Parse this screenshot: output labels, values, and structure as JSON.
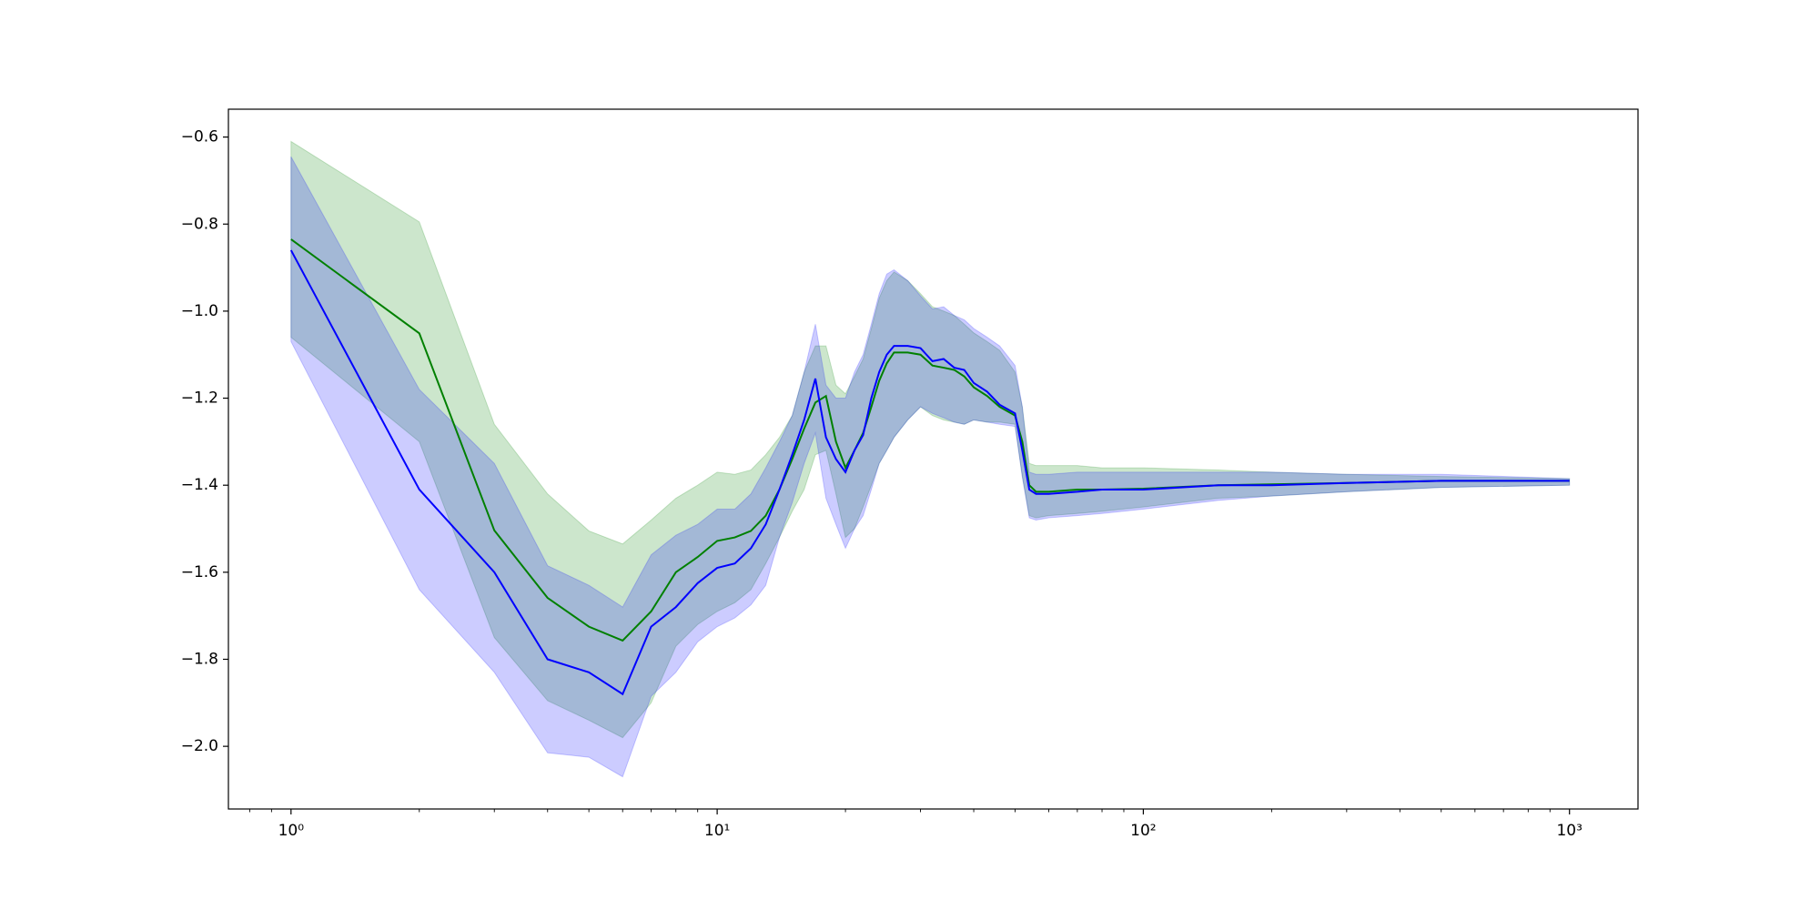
{
  "chart_data": {
    "type": "line",
    "xscale": "log",
    "x": [
      1,
      2,
      3,
      4,
      5,
      6,
      7,
      8,
      9,
      10,
      11,
      12,
      13,
      14,
      15,
      16,
      17,
      18,
      19,
      20,
      21,
      22,
      23,
      24,
      25,
      26,
      28,
      30,
      32,
      34,
      36,
      38,
      40,
      43,
      46,
      50,
      52,
      54,
      56,
      60,
      70,
      80,
      100,
      150,
      200,
      300,
      500,
      1000
    ],
    "series": [
      {
        "color": "green",
        "band_alpha": 0.2,
        "values": [
          -0.835,
          -1.051,
          -1.504,
          -1.659,
          -1.725,
          -1.757,
          -1.69,
          -1.6,
          -1.565,
          -1.528,
          -1.52,
          -1.505,
          -1.47,
          -1.41,
          -1.34,
          -1.27,
          -1.21,
          -1.195,
          -1.3,
          -1.36,
          -1.32,
          -1.28,
          -1.22,
          -1.16,
          -1.12,
          -1.095,
          -1.095,
          -1.1,
          -1.125,
          -1.13,
          -1.135,
          -1.15,
          -1.175,
          -1.195,
          -1.22,
          -1.24,
          -1.3,
          -1.4,
          -1.415,
          -1.415,
          -1.41,
          -1.41,
          -1.408,
          -1.4,
          -1.398,
          -1.395,
          -1.39,
          -1.39
        ],
        "upper": [
          -0.61,
          -0.795,
          -1.26,
          -1.42,
          -1.505,
          -1.535,
          -1.48,
          -1.43,
          -1.4,
          -1.37,
          -1.375,
          -1.365,
          -1.33,
          -1.29,
          -1.24,
          -1.14,
          -1.08,
          -1.08,
          -1.17,
          -1.19,
          -1.15,
          -1.11,
          -1.04,
          -0.97,
          -0.93,
          -0.91,
          -0.93,
          -0.96,
          -0.99,
          -1.0,
          -1.01,
          -1.03,
          -1.05,
          -1.07,
          -1.09,
          -1.14,
          -1.22,
          -1.35,
          -1.355,
          -1.355,
          -1.355,
          -1.36,
          -1.36,
          -1.365,
          -1.37,
          -1.375,
          -1.38,
          -1.385
        ],
        "lower": [
          -1.06,
          -1.3,
          -1.75,
          -1.895,
          -1.94,
          -1.98,
          -1.9,
          -1.77,
          -1.72,
          -1.69,
          -1.67,
          -1.64,
          -1.58,
          -1.52,
          -1.46,
          -1.41,
          -1.33,
          -1.32,
          -1.42,
          -1.52,
          -1.5,
          -1.45,
          -1.4,
          -1.35,
          -1.32,
          -1.29,
          -1.25,
          -1.22,
          -1.24,
          -1.25,
          -1.255,
          -1.26,
          -1.25,
          -1.255,
          -1.255,
          -1.26,
          -1.38,
          -1.47,
          -1.475,
          -1.47,
          -1.465,
          -1.46,
          -1.45,
          -1.43,
          -1.425,
          -1.415,
          -1.405,
          -1.4
        ]
      },
      {
        "color": "blue",
        "band_alpha": 0.2,
        "values": [
          -0.86,
          -1.41,
          -1.6,
          -1.8,
          -1.83,
          -1.88,
          -1.725,
          -1.68,
          -1.625,
          -1.59,
          -1.58,
          -1.545,
          -1.49,
          -1.41,
          -1.33,
          -1.25,
          -1.155,
          -1.29,
          -1.34,
          -1.37,
          -1.32,
          -1.285,
          -1.2,
          -1.14,
          -1.1,
          -1.08,
          -1.08,
          -1.085,
          -1.115,
          -1.11,
          -1.13,
          -1.135,
          -1.165,
          -1.185,
          -1.215,
          -1.235,
          -1.32,
          -1.41,
          -1.42,
          -1.42,
          -1.415,
          -1.41,
          -1.41,
          -1.4,
          -1.4,
          -1.395,
          -1.39,
          -1.39
        ],
        "upper": [
          -0.645,
          -1.18,
          -1.35,
          -1.585,
          -1.63,
          -1.68,
          -1.56,
          -1.515,
          -1.49,
          -1.455,
          -1.455,
          -1.42,
          -1.36,
          -1.3,
          -1.24,
          -1.14,
          -1.03,
          -1.17,
          -1.2,
          -1.2,
          -1.14,
          -1.1,
          -1.03,
          -0.96,
          -0.915,
          -0.905,
          -0.93,
          -0.965,
          -0.995,
          -0.99,
          -1.01,
          -1.02,
          -1.04,
          -1.06,
          -1.08,
          -1.125,
          -1.22,
          -1.37,
          -1.375,
          -1.375,
          -1.37,
          -1.37,
          -1.37,
          -1.37,
          -1.37,
          -1.375,
          -1.375,
          -1.385
        ],
        "lower": [
          -1.07,
          -1.64,
          -1.83,
          -2.015,
          -2.025,
          -2.07,
          -1.885,
          -1.83,
          -1.76,
          -1.725,
          -1.705,
          -1.675,
          -1.63,
          -1.52,
          -1.44,
          -1.35,
          -1.28,
          -1.43,
          -1.49,
          -1.545,
          -1.5,
          -1.47,
          -1.41,
          -1.35,
          -1.32,
          -1.29,
          -1.25,
          -1.22,
          -1.235,
          -1.245,
          -1.255,
          -1.26,
          -1.25,
          -1.255,
          -1.26,
          -1.265,
          -1.38,
          -1.475,
          -1.48,
          -1.475,
          -1.47,
          -1.465,
          -1.455,
          -1.435,
          -1.425,
          -1.415,
          -1.405,
          -1.4
        ]
      }
    ],
    "xlim": [
      0.713,
      1448
    ],
    "xticks": [
      {
        "value": 1,
        "label": "10⁰"
      },
      {
        "value": 10,
        "label": "10¹"
      },
      {
        "value": 100,
        "label": "10²"
      },
      {
        "value": 1000,
        "label": "10³"
      }
    ],
    "ylim": [
      -2.144,
      -0.536
    ],
    "yticks": [
      {
        "value": -2.0,
        "label": "−2.0"
      },
      {
        "value": -1.8,
        "label": "−1.8"
      },
      {
        "value": -1.6,
        "label": "−1.6"
      },
      {
        "value": -1.4,
        "label": "−1.4"
      },
      {
        "value": -1.2,
        "label": "−1.2"
      },
      {
        "value": -1.0,
        "label": "−1.0"
      },
      {
        "value": -0.8,
        "label": "−0.8"
      },
      {
        "value": -0.6,
        "label": "−0.6"
      }
    ]
  }
}
